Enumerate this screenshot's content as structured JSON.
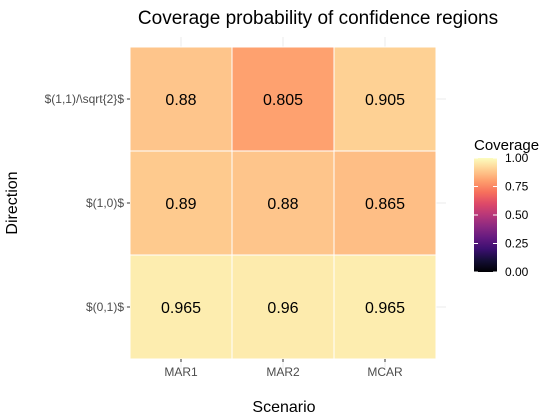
{
  "chart_data": {
    "type": "heatmap",
    "title": "Coverage probability of confidence regions",
    "xlabel": "Scenario",
    "ylabel": "Direction",
    "x_categories": [
      "MAR1",
      "MAR2",
      "MCAR"
    ],
    "y_categories": [
      "$(1,1)/\\sqrt{2}$",
      "$(1,0)$",
      "$(0,1)$"
    ],
    "values": [
      [
        0.88,
        0.805,
        0.905
      ],
      [
        0.89,
        0.88,
        0.865
      ],
      [
        0.965,
        0.96,
        0.965
      ]
    ],
    "value_labels": [
      [
        "0.88",
        "0.805",
        "0.905"
      ],
      [
        "0.89",
        "0.88",
        "0.865"
      ],
      [
        "0.965",
        "0.96",
        "0.965"
      ]
    ],
    "legend": {
      "title": "Coverage",
      "ticks": [
        "0.00",
        "0.25",
        "0.50",
        "0.75",
        "1.00"
      ],
      "range": [
        0,
        1
      ],
      "colormap": "magma",
      "placement": "right"
    },
    "grid": true
  }
}
